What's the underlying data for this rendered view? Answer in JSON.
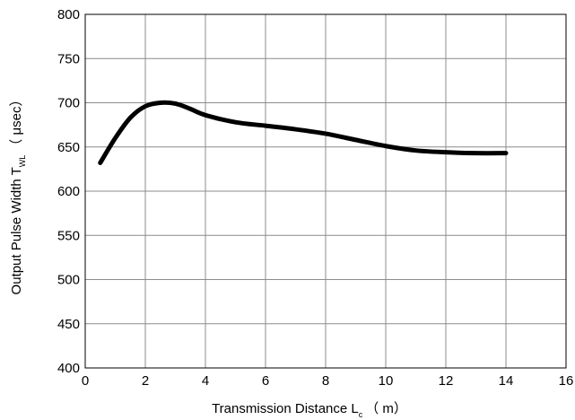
{
  "chart_data": {
    "type": "line",
    "xlabel": {
      "main": "Transmission Distance L",
      "sub": "c",
      "unit": "（ m）"
    },
    "ylabel": {
      "main": "Output Pulse Width T",
      "sub": "WL",
      "unit": "（ μsec）"
    },
    "xlim": [
      0,
      16
    ],
    "ylim": [
      400,
      800
    ],
    "x_ticks": [
      0,
      2,
      4,
      6,
      8,
      10,
      12,
      14,
      16
    ],
    "y_ticks": [
      400,
      450,
      500,
      550,
      600,
      650,
      700,
      750,
      800
    ],
    "x_tick_labels": [
      "0",
      "2",
      "4",
      "6",
      "8",
      "10",
      "12",
      "14",
      "16"
    ],
    "y_tick_labels": [
      "400",
      "450",
      "500",
      "550",
      "600",
      "650",
      "700",
      "750",
      "800"
    ],
    "grid": true,
    "series": [
      {
        "color": "#000000",
        "x": [
          0.5,
          1.0,
          1.5,
          2.0,
          2.5,
          3.0,
          3.5,
          4.0,
          5.0,
          6.0,
          7.0,
          8.0,
          9.0,
          10.0,
          11.0,
          12.0,
          13.0,
          14.0
        ],
        "y": [
          632,
          660,
          683,
          696,
          700,
          699,
          693,
          686,
          678,
          674,
          670,
          665,
          658,
          651,
          646,
          644,
          643,
          643
        ]
      }
    ]
  }
}
